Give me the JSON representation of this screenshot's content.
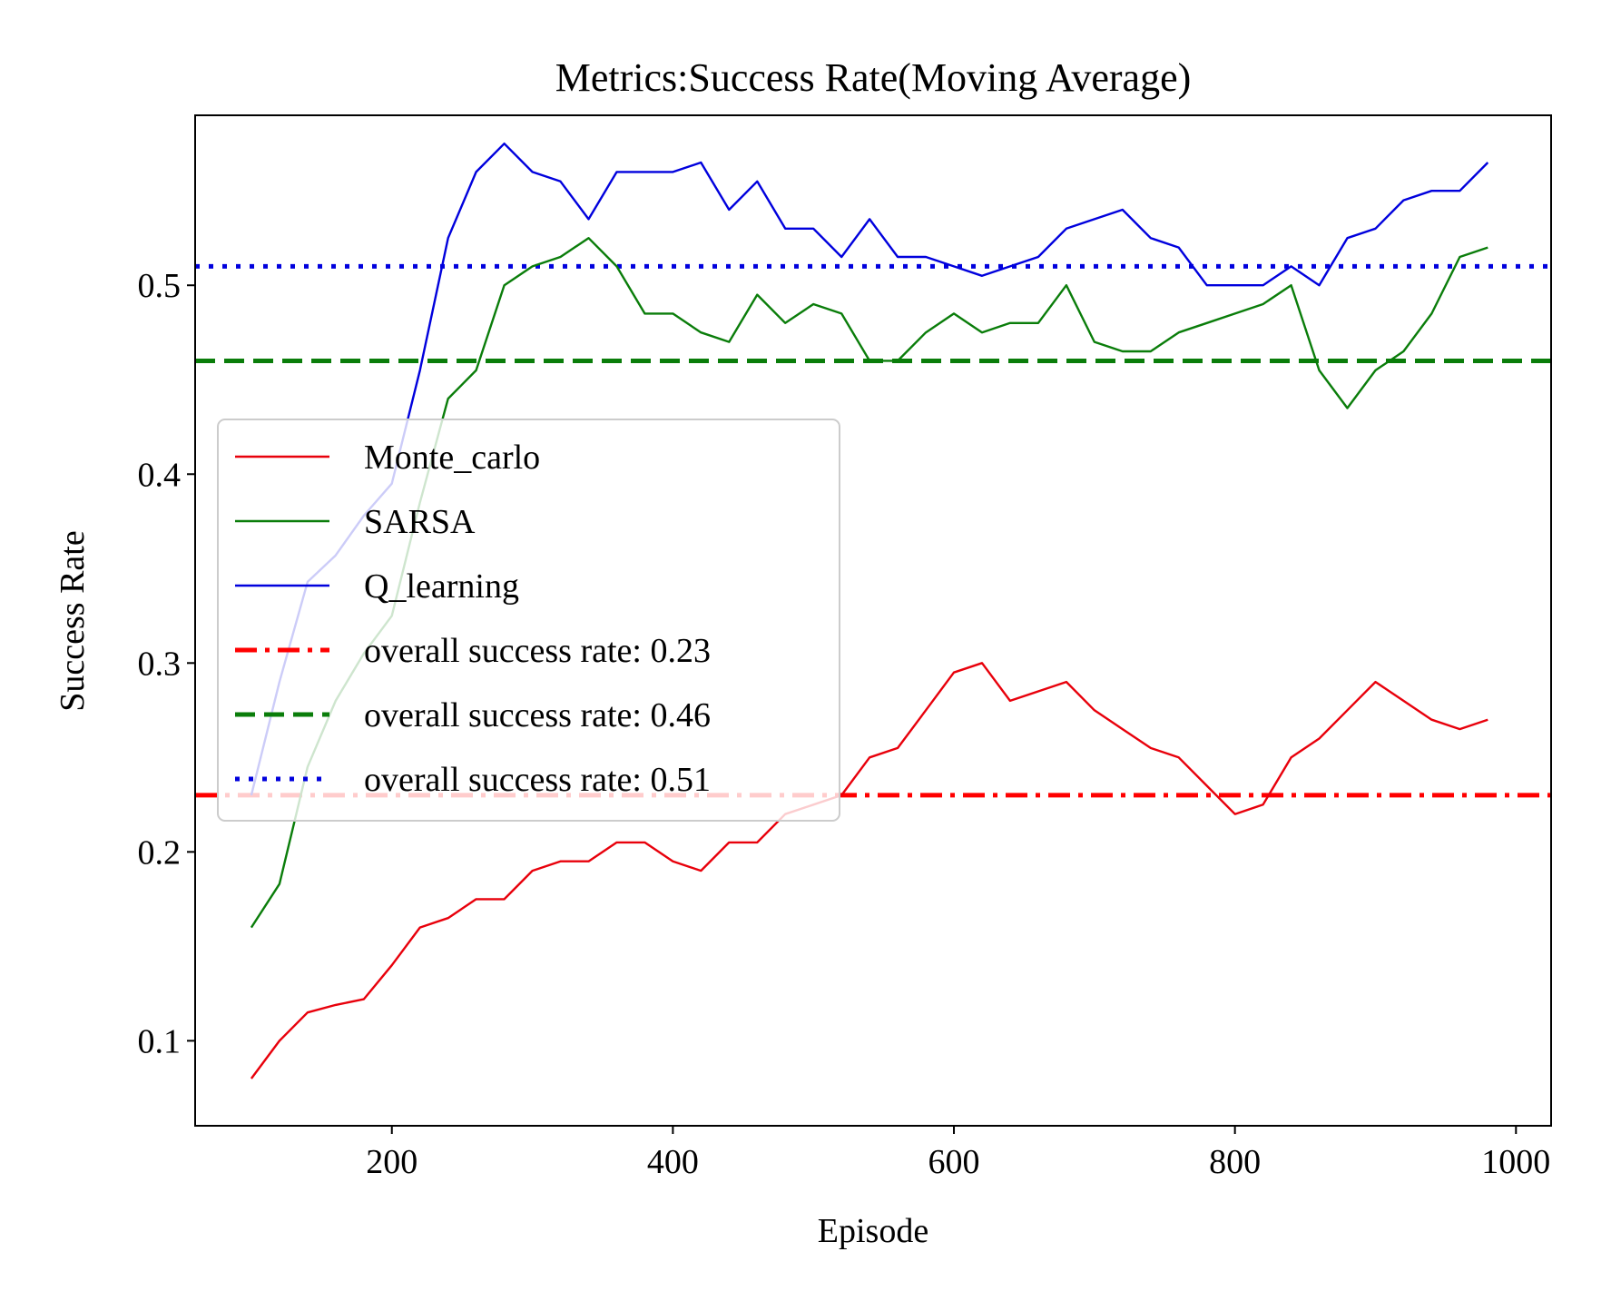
{
  "chart_data": {
    "type": "line",
    "title": "Metrics:Success Rate(Moving Average)",
    "xlabel": "Episode",
    "ylabel": "Success Rate",
    "xlim": [
      60,
      1025
    ],
    "ylim": [
      0.055,
      0.59
    ],
    "xticks": [
      200,
      400,
      600,
      800,
      1000
    ],
    "yticks": [
      0.1,
      0.2,
      0.3,
      0.4,
      0.5
    ],
    "grid": false,
    "legend": "center-left",
    "x": [
      100,
      120,
      140,
      160,
      180,
      200,
      220,
      240,
      260,
      280,
      300,
      320,
      340,
      360,
      380,
      400,
      420,
      440,
      460,
      480,
      500,
      520,
      540,
      560,
      580,
      600,
      620,
      640,
      660,
      680,
      700,
      720,
      740,
      760,
      780,
      800,
      820,
      840,
      860,
      880,
      900,
      920,
      940,
      960,
      980
    ],
    "series": [
      {
        "name": "Monte_carlo",
        "color": "#e8000b",
        "style": "solid",
        "values": [
          0.08,
          0.1,
          0.115,
          0.119,
          0.122,
          0.14,
          0.16,
          0.165,
          0.175,
          0.175,
          0.19,
          0.195,
          0.195,
          0.205,
          0.205,
          0.195,
          0.19,
          0.205,
          0.205,
          0.22,
          0.225,
          0.23,
          0.25,
          0.255,
          0.275,
          0.295,
          0.3,
          0.28,
          0.285,
          0.29,
          0.275,
          0.265,
          0.255,
          0.25,
          0.235,
          0.22,
          0.225,
          0.25,
          0.26,
          0.275,
          0.29,
          0.28,
          0.27,
          0.265,
          0.27
        ]
      },
      {
        "name": "SARSA",
        "color": "#0a7d0a",
        "style": "solid",
        "values": [
          0.16,
          0.183,
          0.245,
          0.28,
          0.305,
          0.325,
          0.385,
          0.44,
          0.455,
          0.5,
          0.51,
          0.515,
          0.525,
          0.51,
          0.485,
          0.485,
          0.475,
          0.47,
          0.495,
          0.48,
          0.49,
          0.485,
          0.46,
          0.46,
          0.475,
          0.485,
          0.475,
          0.48,
          0.48,
          0.5,
          0.47,
          0.465,
          0.465,
          0.475,
          0.48,
          0.485,
          0.49,
          0.5,
          0.455,
          0.435,
          0.455,
          0.465,
          0.485,
          0.515,
          0.52
        ]
      },
      {
        "name": "Q_learning",
        "color": "#0000dd",
        "style": "solid",
        "values": [
          0.23,
          0.29,
          0.343,
          0.357,
          0.378,
          0.395,
          0.455,
          0.525,
          0.56,
          0.575,
          0.56,
          0.555,
          0.535,
          0.56,
          0.56,
          0.56,
          0.565,
          0.54,
          0.555,
          0.53,
          0.53,
          0.515,
          0.535,
          0.515,
          0.515,
          0.51,
          0.505,
          0.51,
          0.515,
          0.53,
          0.535,
          0.54,
          0.525,
          0.52,
          0.5,
          0.5,
          0.5,
          0.51,
          0.5,
          0.525,
          0.53,
          0.545,
          0.55,
          0.55,
          0.565
        ]
      }
    ],
    "hlines": [
      {
        "name": "overall success rate: 0.23",
        "value": 0.23,
        "color": "#ff0000",
        "style": "dashdot"
      },
      {
        "name": "overall success rate: 0.46",
        "value": 0.46,
        "color": "#0a7d0a",
        "style": "dashed"
      },
      {
        "name": "overall success rate: 0.51",
        "value": 0.51,
        "color": "#0000dd",
        "style": "dotted"
      }
    ]
  }
}
